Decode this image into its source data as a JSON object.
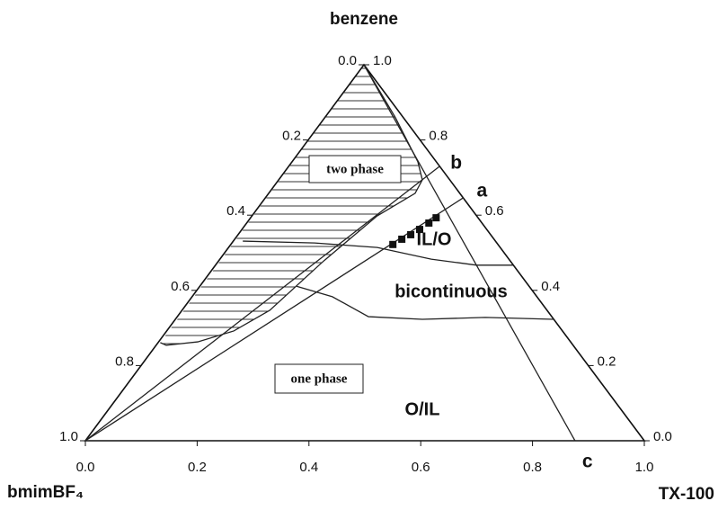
{
  "chart_data": {
    "type": "ternary",
    "vertex_labels": {
      "top": "benzene",
      "left": "bmimBF₄",
      "right": "TX-100"
    },
    "axes": {
      "bottom": {
        "ticks": [
          {
            "value": 0,
            "label": "0.0"
          },
          0.2,
          0.4,
          0.6,
          0.8,
          {
            "value": 1,
            "label": "1.0"
          }
        ]
      },
      "left": {
        "ticks": [
          {
            "value": 0,
            "label": "0.0"
          },
          0.2,
          0.4,
          0.6,
          0.8,
          {
            "value": 1,
            "label": "1.0"
          }
        ]
      },
      "right": {
        "ticks": [
          {
            "value": 0,
            "label": "0.0"
          },
          0.2,
          0.4,
          0.6,
          0.8,
          {
            "value": 1,
            "label": "1.0"
          }
        ]
      }
    },
    "two_phase": {
      "tx": [
        0,
        0.125,
        0.225,
        0.257,
        0.262,
        0.224,
        0.188,
        0.157,
        0.12,
        0.07,
        0.018,
        0.004
      ],
      "benzene": [
        1,
        0.861,
        0.742,
        0.694,
        0.658,
        0.598,
        0.478,
        0.347,
        0.292,
        0.263,
        0.254,
        0.261
      ]
    },
    "curves": [
      {
        "tx": [
          0.017,
          0.148,
          0.266,
          0.378,
          0.467,
          0.533
        ],
        "benzene": [
          0.531,
          0.526,
          0.514,
          0.483,
          0.467,
          0.467
        ]
      },
      {
        "tx": [
          0.173,
          0.251,
          0.342,
          0.442,
          0.552,
          0.677
        ],
        "benzene": [
          0.411,
          0.383,
          0.33,
          0.323,
          0.328,
          0.323
        ]
      }
    ],
    "lines": [
      {
        "label": "a",
        "tx": [
          0,
          0.354
        ],
        "benzene": [
          0,
          0.646
        ]
      },
      {
        "label": "b",
        "tx": [
          0,
          0.27
        ],
        "benzene": [
          0,
          0.73
        ]
      },
      {
        "label": "c",
        "tx": [
          0,
          0.876
        ],
        "benzene": [
          1,
          0
        ]
      }
    ],
    "points": {
      "tx": [
        0.29,
        0.299,
        0.309,
        0.318,
        0.326,
        0.332
      ],
      "benzene": [
        0.522,
        0.536,
        0.548,
        0.562,
        0.579,
        0.593
      ]
    },
    "regions": [
      "two phase",
      "one phase",
      "IL/O",
      "bicontinuous",
      "O/IL"
    ]
  }
}
